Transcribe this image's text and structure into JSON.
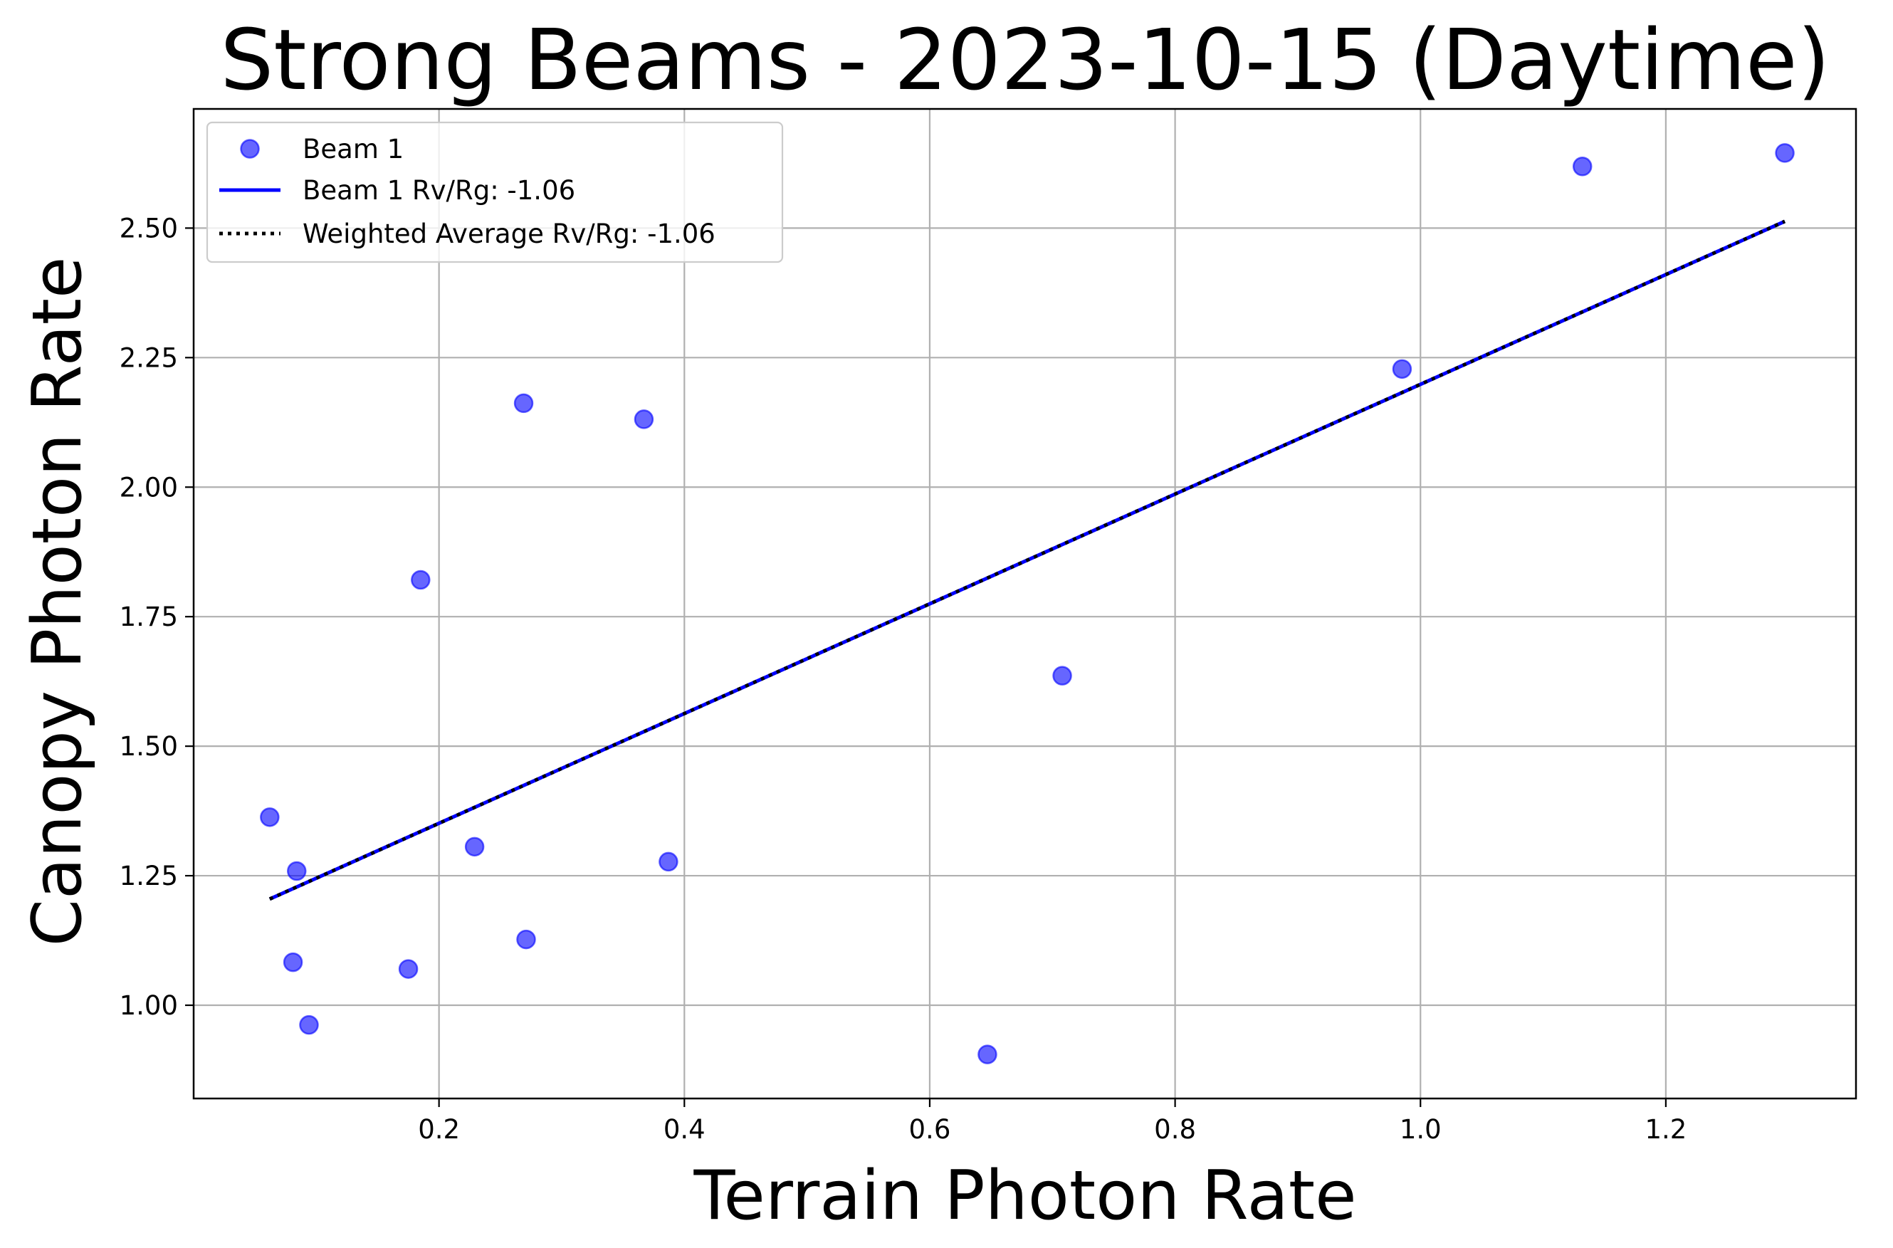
{
  "chart_data": {
    "type": "scatter",
    "title": "Strong Beams - 2023-10-15 (Daytime)",
    "xlabel": "Terrain Photon Rate",
    "ylabel": "Canopy Photon Rate",
    "xlim": [
      0.0,
      1.355
    ],
    "ylim": [
      0.82,
      2.73
    ],
    "xticks": [
      0.2,
      0.4,
      0.6,
      0.8,
      1.0,
      1.2
    ],
    "xtick_labels": [
      "0.2",
      "0.4",
      "0.6",
      "0.8",
      "1.0",
      "1.2"
    ],
    "yticks": [
      1.0,
      1.25,
      1.5,
      1.75,
      2.0,
      2.25,
      2.5
    ],
    "ytick_labels": [
      "1.00",
      "1.25",
      "1.50",
      "1.75",
      "2.00",
      "2.25",
      "2.50"
    ],
    "grid": true,
    "legend_placement": "top-left",
    "series": [
      {
        "name": "Beam 1",
        "kind": "scatter",
        "color": "#0000ff",
        "points": [
          {
            "x": 0.062,
            "y": 1.363
          },
          {
            "x": 0.084,
            "y": 1.259
          },
          {
            "x": 0.081,
            "y": 1.083
          },
          {
            "x": 0.094,
            "y": 0.962
          },
          {
            "x": 0.175,
            "y": 1.07
          },
          {
            "x": 0.185,
            "y": 1.821
          },
          {
            "x": 0.229,
            "y": 1.306
          },
          {
            "x": 0.269,
            "y": 2.162
          },
          {
            "x": 0.271,
            "y": 1.127
          },
          {
            "x": 0.367,
            "y": 2.131
          },
          {
            "x": 0.387,
            "y": 1.277
          },
          {
            "x": 0.647,
            "y": 0.905
          },
          {
            "x": 0.708,
            "y": 1.636
          },
          {
            "x": 0.985,
            "y": 2.228
          },
          {
            "x": 1.132,
            "y": 2.619
          },
          {
            "x": 1.297,
            "y": 2.645
          }
        ]
      },
      {
        "name": "Beam 1 Rv/Rg: -1.06",
        "kind": "line",
        "color": "#0000ff",
        "points": [
          {
            "x": 0.062,
            "y": 1.205
          },
          {
            "x": 1.297,
            "y": 2.513
          }
        ]
      },
      {
        "name": "Weighted Average Rv/Rg: -1.06",
        "kind": "line-dotted",
        "color": "#000000",
        "points": [
          {
            "x": 0.062,
            "y": 1.205
          },
          {
            "x": 1.297,
            "y": 2.513
          }
        ]
      }
    ]
  }
}
